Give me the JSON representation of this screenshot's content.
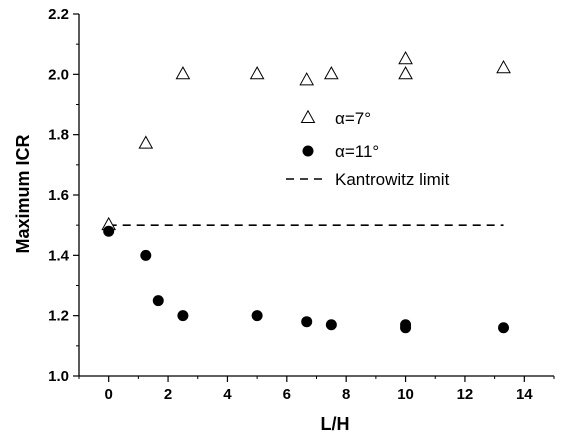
{
  "chart_data": {
    "type": "scatter",
    "xlabel": "L/H",
    "ylabel": "Maximum ICR",
    "xlim": [
      -1,
      15
    ],
    "ylim": [
      1.0,
      2.2
    ],
    "x_ticks": [
      0,
      2,
      4,
      6,
      8,
      10,
      12,
      14
    ],
    "x_tick_labels": [
      "0",
      "2",
      "4",
      "6",
      "8",
      "10",
      "12",
      "14"
    ],
    "y_ticks": [
      1.0,
      1.2,
      1.4,
      1.6,
      1.8,
      2.0,
      2.2
    ],
    "y_tick_labels": [
      "1.0",
      "1.2",
      "1.4",
      "1.6",
      "1.8",
      "2.0",
      "2.2"
    ],
    "grid": false,
    "legend_position": "center-right",
    "series": [
      {
        "name": "α=7°",
        "marker": "open-triangle",
        "color": "#000000",
        "x": [
          0,
          1.25,
          2.5,
          5,
          6.67,
          7.5,
          10,
          10,
          13.3
        ],
        "y": [
          1.5,
          1.77,
          2.0,
          2.0,
          1.98,
          2.0,
          2.05,
          2.0,
          2.02
        ]
      },
      {
        "name": "α=11°",
        "marker": "filled-circle",
        "color": "#000000",
        "x": [
          0,
          1.25,
          1.67,
          2.5,
          5,
          6.67,
          7.5,
          10,
          10,
          13.3
        ],
        "y": [
          1.48,
          1.4,
          1.25,
          1.2,
          1.2,
          1.18,
          1.17,
          1.17,
          1.16,
          1.16
        ]
      }
    ],
    "reference_lines": [
      {
        "name": "Kantrowitz limit",
        "style": "dashed",
        "x": [
          0,
          13.3
        ],
        "y": [
          1.5,
          1.5
        ]
      }
    ]
  }
}
